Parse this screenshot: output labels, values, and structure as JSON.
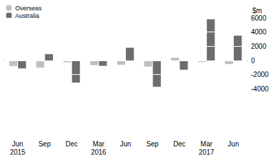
{
  "chart_data": {
    "type": "bar",
    "y_label": "$m",
    "categories": [
      "Jun\n2015",
      "Sep",
      "Dec",
      "Mar\n2016",
      "Jun",
      "Sep",
      "Dec",
      "Mar\n2017",
      "Jun"
    ],
    "series": [
      {
        "name": "Overseas",
        "color": "#c0c0c0",
        "values": [
          -800,
          -1000,
          -250,
          -650,
          -600,
          -850,
          400,
          -200,
          -500
        ]
      },
      {
        "name": "Australia",
        "color": "#6d6d6d",
        "values": [
          -1100,
          900,
          -3100,
          -750,
          1800,
          -3700,
          -1300,
          5800,
          3500
        ]
      }
    ],
    "ylim": [
      -4000,
      6000
    ],
    "yticks": [
      -4000,
      -2000,
      0,
      2000,
      4000,
      6000
    ],
    "grid": true,
    "legend": "top-left"
  }
}
